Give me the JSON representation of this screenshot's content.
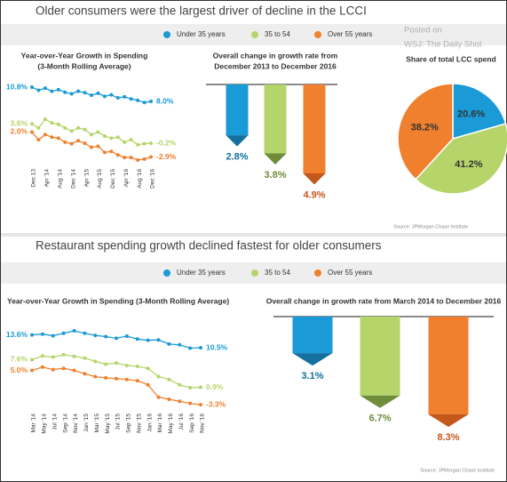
{
  "panels": [
    {
      "title": "Older consumers were the largest driver of decline in the LCCI",
      "source": "Source: JPMorgan Chase Institute"
    },
    {
      "title": "Restaurant spending growth declined fastest for older consumers",
      "source": "Source: JPMorgan Chase Institute"
    }
  ],
  "watermark": [
    "Posted on",
    "WSJ: The Daily Shot"
  ],
  "chart_data": [
    {
      "type": "line",
      "title": [
        "Year-over-Year Growth in Spending",
        "(3-Month Rolling Average)"
      ],
      "categories": [
        "Dec 13",
        null,
        "Apr '14",
        null,
        "Aug '14",
        null,
        "Dec '14",
        null,
        "Apr '15",
        null,
        "Aug '15",
        null,
        "Dec '15",
        null,
        "Apr '16",
        null,
        "Aug '16",
        null,
        "Dec '16"
      ],
      "series": [
        {
          "name": "Under 35 years",
          "color": "#1a9ad6",
          "values": [
            10.8,
            10.2,
            10.6,
            10.0,
            10.3,
            9.8,
            9.5,
            10.0,
            9.7,
            9.2,
            9.6,
            9.0,
            9.3,
            8.7,
            8.9,
            8.5,
            8.2,
            7.8,
            8.0
          ],
          "value_labels": [
            "10.8%",
            null,
            null,
            null,
            null,
            null,
            null,
            null,
            null,
            null,
            null,
            null,
            null,
            null,
            null,
            null,
            null,
            null,
            "8.0%"
          ]
        },
        {
          "name": "35 to 54",
          "color": "#b5d56a",
          "values": [
            3.6,
            2.8,
            4.5,
            3.8,
            3.5,
            2.8,
            2.2,
            2.8,
            2.5,
            1.5,
            2.0,
            1.2,
            0.8,
            1.0,
            0.0,
            0.5,
            -0.5,
            -0.3,
            -0.2
          ],
          "value_labels": [
            "3.6%",
            null,
            null,
            null,
            null,
            null,
            null,
            null,
            null,
            null,
            null,
            null,
            null,
            null,
            null,
            null,
            null,
            null,
            "-0.2%"
          ]
        },
        {
          "name": "Over 55 years",
          "color": "#f07f2e",
          "values": [
            2.0,
            0.5,
            1.5,
            1.0,
            0.8,
            0.0,
            -0.3,
            0.3,
            -0.2,
            -1.0,
            -0.8,
            -2.0,
            -1.8,
            -2.5,
            -3.0,
            -3.0,
            -3.5,
            -3.3,
            -2.9
          ],
          "value_labels": [
            "2.0%",
            null,
            null,
            null,
            null,
            null,
            null,
            null,
            null,
            null,
            null,
            null,
            null,
            null,
            null,
            null,
            null,
            null,
            "-2.9%"
          ]
        }
      ]
    },
    {
      "type": "bar",
      "title": [
        "Overall change in growth rate from",
        "December 2013 to December 2016"
      ],
      "values": [
        2.8,
        3.8,
        4.9
      ],
      "value_labels": [
        "2.8%",
        "3.8%",
        "4.9%"
      ],
      "colors": [
        "#1a9ad6",
        "#b5d56a",
        "#f07f2e"
      ],
      "tip_colors": [
        "#14709e",
        "#6f8c3b",
        "#c4571b"
      ]
    },
    {
      "type": "pie",
      "title": [
        "Share of total LCC spend"
      ],
      "values": [
        20.6,
        41.2,
        38.2
      ],
      "value_labels": [
        "20.6%",
        "41.2%",
        "38.2%"
      ],
      "colors": [
        "#1a9ad6",
        "#b5d56a",
        "#f07f2e"
      ]
    },
    {
      "type": "line",
      "title": [
        "Year-over-Year Growth in Spending (3-Month Rolling Average)"
      ],
      "categories": [
        "Mar '14",
        "May '14",
        "Jul '14",
        "Sep '14",
        "Nov '14",
        "Jan '15",
        "Mar '15",
        "May '15",
        "Jul '15",
        "Sep '15",
        "Nov '15",
        "Jan '16",
        "Mar '16",
        "May '16",
        "Jul '16",
        "Sep '16",
        "Nov '16"
      ],
      "series": [
        {
          "name": "Under 35 years",
          "color": "#1a9ad6",
          "values": [
            13.6,
            13.8,
            13.4,
            14.0,
            14.6,
            14.0,
            13.5,
            13.2,
            12.8,
            13.3,
            12.6,
            12.3,
            12.4,
            11.4,
            11.2,
            10.4,
            10.5
          ],
          "value_labels": [
            "13.6%",
            null,
            null,
            null,
            null,
            null,
            null,
            null,
            null,
            null,
            null,
            null,
            null,
            null,
            null,
            null,
            "10.5%"
          ]
        },
        {
          "name": "35 to 54",
          "color": "#b5d56a",
          "values": [
            7.6,
            8.5,
            8.2,
            8.8,
            8.4,
            8.0,
            7.2,
            6.5,
            6.8,
            6.2,
            6.0,
            5.5,
            3.5,
            2.8,
            1.5,
            0.8,
            0.9
          ],
          "value_labels": [
            "7.6%",
            null,
            null,
            null,
            null,
            null,
            null,
            null,
            null,
            null,
            null,
            null,
            null,
            null,
            null,
            null,
            "0.9%"
          ]
        },
        {
          "name": "Over 55 years",
          "color": "#f07f2e",
          "values": [
            5.0,
            5.8,
            5.2,
            5.5,
            5.0,
            4.2,
            3.5,
            3.2,
            3.0,
            2.8,
            2.5,
            1.5,
            -1.5,
            -2.0,
            -2.5,
            -3.0,
            -3.3
          ],
          "value_labels": [
            "5.0%",
            null,
            null,
            null,
            null,
            null,
            null,
            null,
            null,
            null,
            null,
            null,
            null,
            null,
            null,
            null,
            "-3.3%"
          ]
        }
      ]
    },
    {
      "type": "bar",
      "title": [
        "Overall change in growth rate from March 2014 to December 2016"
      ],
      "values": [
        3.1,
        6.7,
        8.3
      ],
      "value_labels": [
        "3.1%",
        "6.7%",
        "8.3%"
      ],
      "colors": [
        "#1a9ad6",
        "#b5d56a",
        "#f07f2e"
      ],
      "tip_colors": [
        "#14709e",
        "#6f8c3b",
        "#c4571b"
      ]
    }
  ]
}
